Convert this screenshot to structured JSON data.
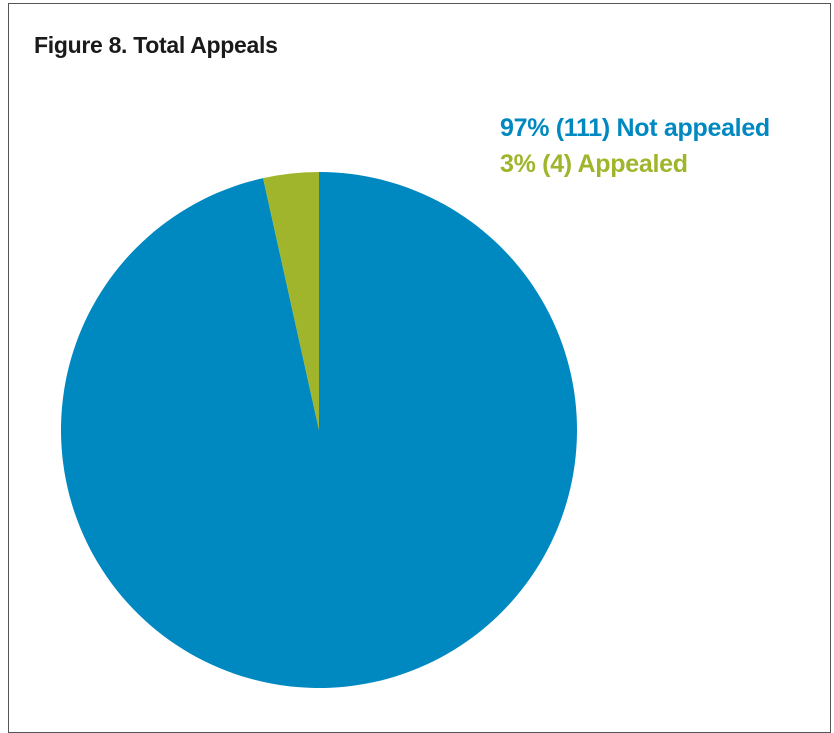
{
  "figure": {
    "title": "Figure 8. Total Appeals"
  },
  "chart_data": {
    "type": "pie",
    "title": "Figure 8. Total Appeals",
    "slices": [
      {
        "label": "97% (111) Not appealed",
        "category": "Not appealed",
        "percent": 97,
        "count": 111,
        "color": "#0088c0"
      },
      {
        "label": "3% (4) Appealed",
        "category": "Appealed",
        "percent": 3,
        "count": 4,
        "color": "#a0b52b"
      }
    ],
    "legend_position": "top-right"
  }
}
